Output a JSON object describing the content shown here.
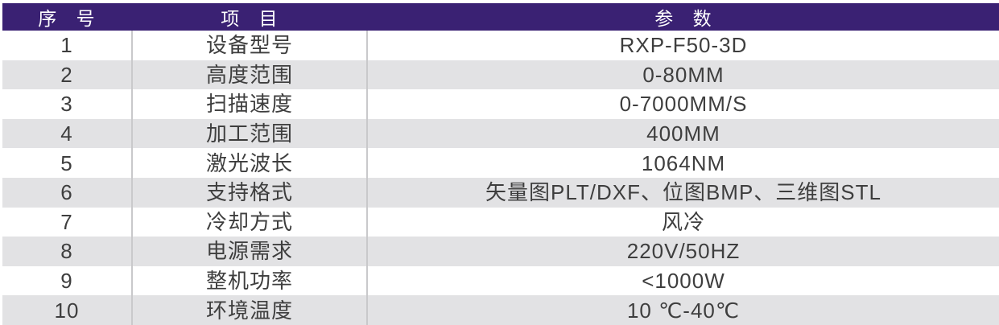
{
  "table": {
    "title": "product-specification-table",
    "columns": [
      {
        "key": "index",
        "label": "序 号"
      },
      {
        "key": "item",
        "label": "项 目"
      },
      {
        "key": "param",
        "label": "参 数"
      }
    ],
    "rows": [
      {
        "index": "1",
        "item": "设备型号",
        "param": "RXP-F50-3D"
      },
      {
        "index": "2",
        "item": "高度范围",
        "param": "0-80MM"
      },
      {
        "index": "3",
        "item": "扫描速度",
        "param": "0-7000MM/S"
      },
      {
        "index": "4",
        "item": "加工范围",
        "param": "400MM"
      },
      {
        "index": "5",
        "item": "激光波长",
        "param": "1064NM"
      },
      {
        "index": "6",
        "item": "支持格式",
        "param": "矢量图PLT/DXF、位图BMP、三维图STL"
      },
      {
        "index": "7",
        "item": "冷却方式",
        "param": "风冷"
      },
      {
        "index": "8",
        "item": "电源需求",
        "param": "220V/50HZ"
      },
      {
        "index": "9",
        "item": "整机功率",
        "param": "<1000W"
      },
      {
        "index": "10",
        "item": "环境温度",
        "param": "10 ℃-40℃"
      }
    ]
  },
  "colors": {
    "header_bg": "#3a2173",
    "header_text": "#ffffff",
    "stripe_bg": "#e2e2e4",
    "row_bg": "#ffffff",
    "divider": "#c9c9cb",
    "cell_text": "#3e3e3e"
  }
}
